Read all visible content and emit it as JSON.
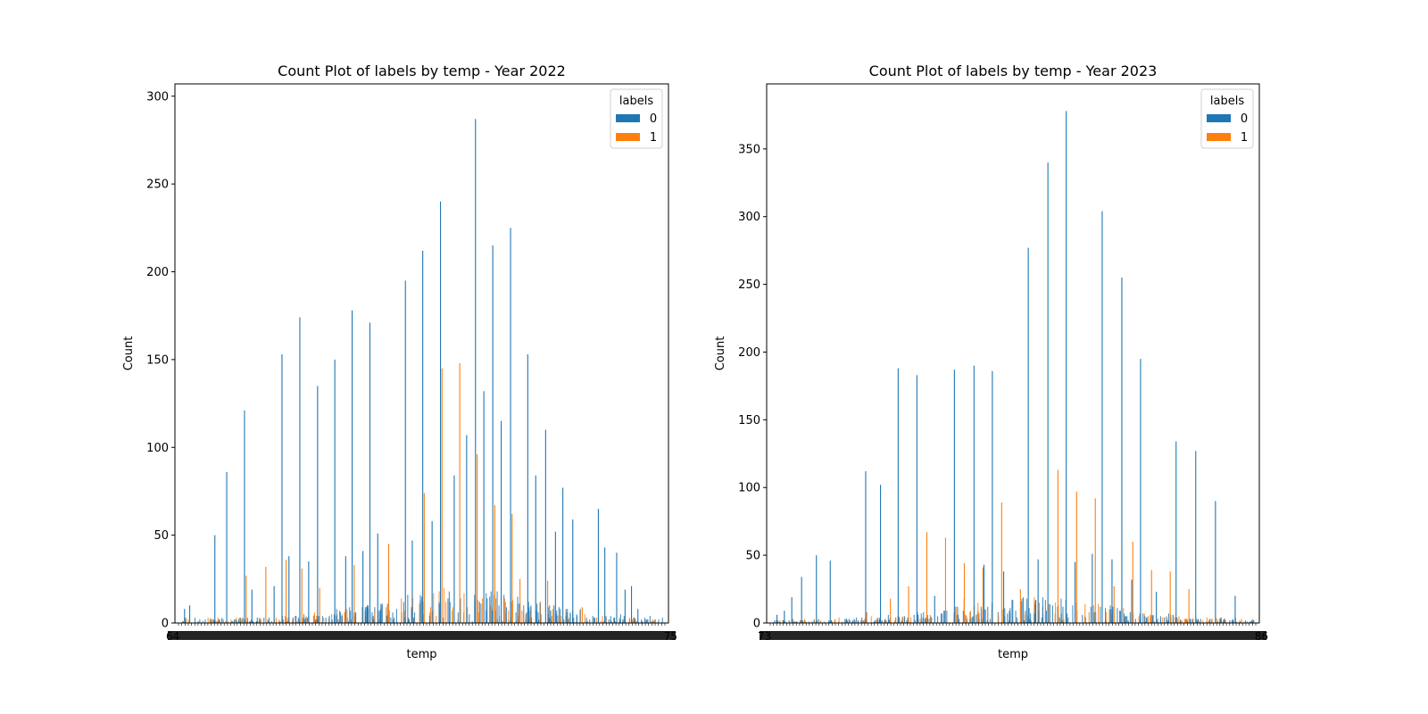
{
  "colors": {
    "label_0": "#1f77b4",
    "label_1": "#ff7f0e",
    "axis": "#000000"
  },
  "chart_data": [
    {
      "type": "bar",
      "title": "Count Plot of labels by temp - Year 2022",
      "xlabel": "temp",
      "ylabel": "Count",
      "ylim": [
        0,
        307
      ],
      "yticks": [
        0,
        50,
        100,
        150,
        200,
        250,
        300
      ],
      "x_tick_labels_first": "64",
      "x_tick_labels_last": "75",
      "grid": false,
      "legend": {
        "title": "labels",
        "entries": [
          "0",
          "1"
        ],
        "placement": "top-right"
      },
      "series": [
        {
          "name": "0",
          "peaks": [
            {
              "x": 0.0185,
              "v": 8
            },
            {
              "x": 0.029,
              "v": 10
            },
            {
              "x": 0.08,
              "v": 50
            },
            {
              "x": 0.104,
              "v": 86
            },
            {
              "x": 0.14,
              "v": 121
            },
            {
              "x": 0.216,
              "v": 153
            },
            {
              "x": 0.252,
              "v": 174
            },
            {
              "x": 0.288,
              "v": 135
            },
            {
              "x": 0.323,
              "v": 150
            },
            {
              "x": 0.358,
              "v": 178
            },
            {
              "x": 0.394,
              "v": 171
            },
            {
              "x": 0.466,
              "v": 195
            },
            {
              "x": 0.501,
              "v": 212
            },
            {
              "x": 0.537,
              "v": 240
            },
            {
              "x": 0.608,
              "v": 287
            },
            {
              "x": 0.643,
              "v": 215
            },
            {
              "x": 0.679,
              "v": 225
            },
            {
              "x": 0.714,
              "v": 153
            },
            {
              "x": 0.75,
              "v": 110
            },
            {
              "x": 0.785,
              "v": 77
            },
            {
              "x": 0.857,
              "v": 65
            },
            {
              "x": 0.894,
              "v": 40
            },
            {
              "x": 0.565,
              "v": 84
            },
            {
              "x": 0.59,
              "v": 107
            },
            {
              "x": 0.625,
              "v": 132
            },
            {
              "x": 0.66,
              "v": 115
            },
            {
              "x": 0.73,
              "v": 84
            },
            {
              "x": 0.77,
              "v": 52
            },
            {
              "x": 0.805,
              "v": 59
            },
            {
              "x": 0.48,
              "v": 47
            },
            {
              "x": 0.52,
              "v": 58
            },
            {
              "x": 0.41,
              "v": 51
            },
            {
              "x": 0.38,
              "v": 41
            },
            {
              "x": 0.345,
              "v": 38
            },
            {
              "x": 0.27,
              "v": 35
            },
            {
              "x": 0.23,
              "v": 38
            },
            {
              "x": 0.2,
              "v": 21
            },
            {
              "x": 0.155,
              "v": 19
            },
            {
              "x": 0.87,
              "v": 43
            },
            {
              "x": 0.911,
              "v": 19
            },
            {
              "x": 0.924,
              "v": 21
            },
            {
              "x": 0.937,
              "v": 8
            }
          ]
        },
        {
          "name": "1",
          "peaks": [
            {
              "x": 0.141,
              "v": 27
            },
            {
              "x": 0.181,
              "v": 32
            },
            {
              "x": 0.222,
              "v": 36
            },
            {
              "x": 0.254,
              "v": 31
            },
            {
              "x": 0.29,
              "v": 20
            },
            {
              "x": 0.36,
              "v": 33
            },
            {
              "x": 0.43,
              "v": 45
            },
            {
              "x": 0.502,
              "v": 74
            },
            {
              "x": 0.538,
              "v": 145
            },
            {
              "x": 0.574,
              "v": 148
            },
            {
              "x": 0.609,
              "v": 96
            },
            {
              "x": 0.645,
              "v": 67
            },
            {
              "x": 0.68,
              "v": 62
            },
            {
              "x": 0.696,
              "v": 25
            },
            {
              "x": 0.752,
              "v": 24
            },
            {
              "x": 0.822,
              "v": 9
            }
          ]
        }
      ]
    },
    {
      "type": "bar",
      "title": "Count Plot of labels by temp - Year 2023",
      "xlabel": "temp",
      "ylabel": "Count",
      "ylim": [
        0,
        398
      ],
      "yticks": [
        0,
        50,
        100,
        150,
        200,
        250,
        300,
        350
      ],
      "x_tick_labels_first": "73",
      "x_tick_labels_last": "86",
      "grid": false,
      "legend": {
        "title": "labels",
        "entries": [
          "0",
          "1"
        ],
        "placement": "top-right"
      },
      "series": [
        {
          "name": "0",
          "peaks": [
            {
              "x": 0.02,
              "v": 6
            },
            {
              "x": 0.035,
              "v": 9
            },
            {
              "x": 0.05,
              "v": 19
            },
            {
              "x": 0.07,
              "v": 34
            },
            {
              "x": 0.1,
              "v": 50
            },
            {
              "x": 0.128,
              "v": 46
            },
            {
              "x": 0.2,
              "v": 112
            },
            {
              "x": 0.23,
              "v": 102
            },
            {
              "x": 0.266,
              "v": 188
            },
            {
              "x": 0.304,
              "v": 183
            },
            {
              "x": 0.38,
              "v": 187
            },
            {
              "x": 0.42,
              "v": 190
            },
            {
              "x": 0.457,
              "v": 186
            },
            {
              "x": 0.53,
              "v": 277
            },
            {
              "x": 0.57,
              "v": 340
            },
            {
              "x": 0.607,
              "v": 378
            },
            {
              "x": 0.68,
              "v": 304
            },
            {
              "x": 0.72,
              "v": 255
            },
            {
              "x": 0.758,
              "v": 195
            },
            {
              "x": 0.83,
              "v": 134
            },
            {
              "x": 0.87,
              "v": 127
            },
            {
              "x": 0.91,
              "v": 90
            },
            {
              "x": 0.48,
              "v": 38
            },
            {
              "x": 0.55,
              "v": 47
            },
            {
              "x": 0.625,
              "v": 45
            },
            {
              "x": 0.66,
              "v": 51
            },
            {
              "x": 0.7,
              "v": 47
            },
            {
              "x": 0.74,
              "v": 32
            },
            {
              "x": 0.79,
              "v": 23
            },
            {
              "x": 0.44,
              "v": 43
            },
            {
              "x": 0.4,
              "v": 18
            },
            {
              "x": 0.34,
              "v": 20
            },
            {
              "x": 0.95,
              "v": 20
            }
          ]
        },
        {
          "name": "1",
          "peaks": [
            {
              "x": 0.2,
              "v": 8
            },
            {
              "x": 0.248,
              "v": 18
            },
            {
              "x": 0.285,
              "v": 27
            },
            {
              "x": 0.322,
              "v": 67
            },
            {
              "x": 0.36,
              "v": 63
            },
            {
              "x": 0.398,
              "v": 44
            },
            {
              "x": 0.436,
              "v": 41
            },
            {
              "x": 0.474,
              "v": 89
            },
            {
              "x": 0.512,
              "v": 25
            },
            {
              "x": 0.55,
              "v": 15
            },
            {
              "x": 0.588,
              "v": 113
            },
            {
              "x": 0.626,
              "v": 97
            },
            {
              "x": 0.664,
              "v": 92
            },
            {
              "x": 0.702,
              "v": 27
            },
            {
              "x": 0.74,
              "v": 60
            },
            {
              "x": 0.778,
              "v": 39
            },
            {
              "x": 0.816,
              "v": 38
            },
            {
              "x": 0.854,
              "v": 25
            }
          ]
        }
      ]
    }
  ]
}
